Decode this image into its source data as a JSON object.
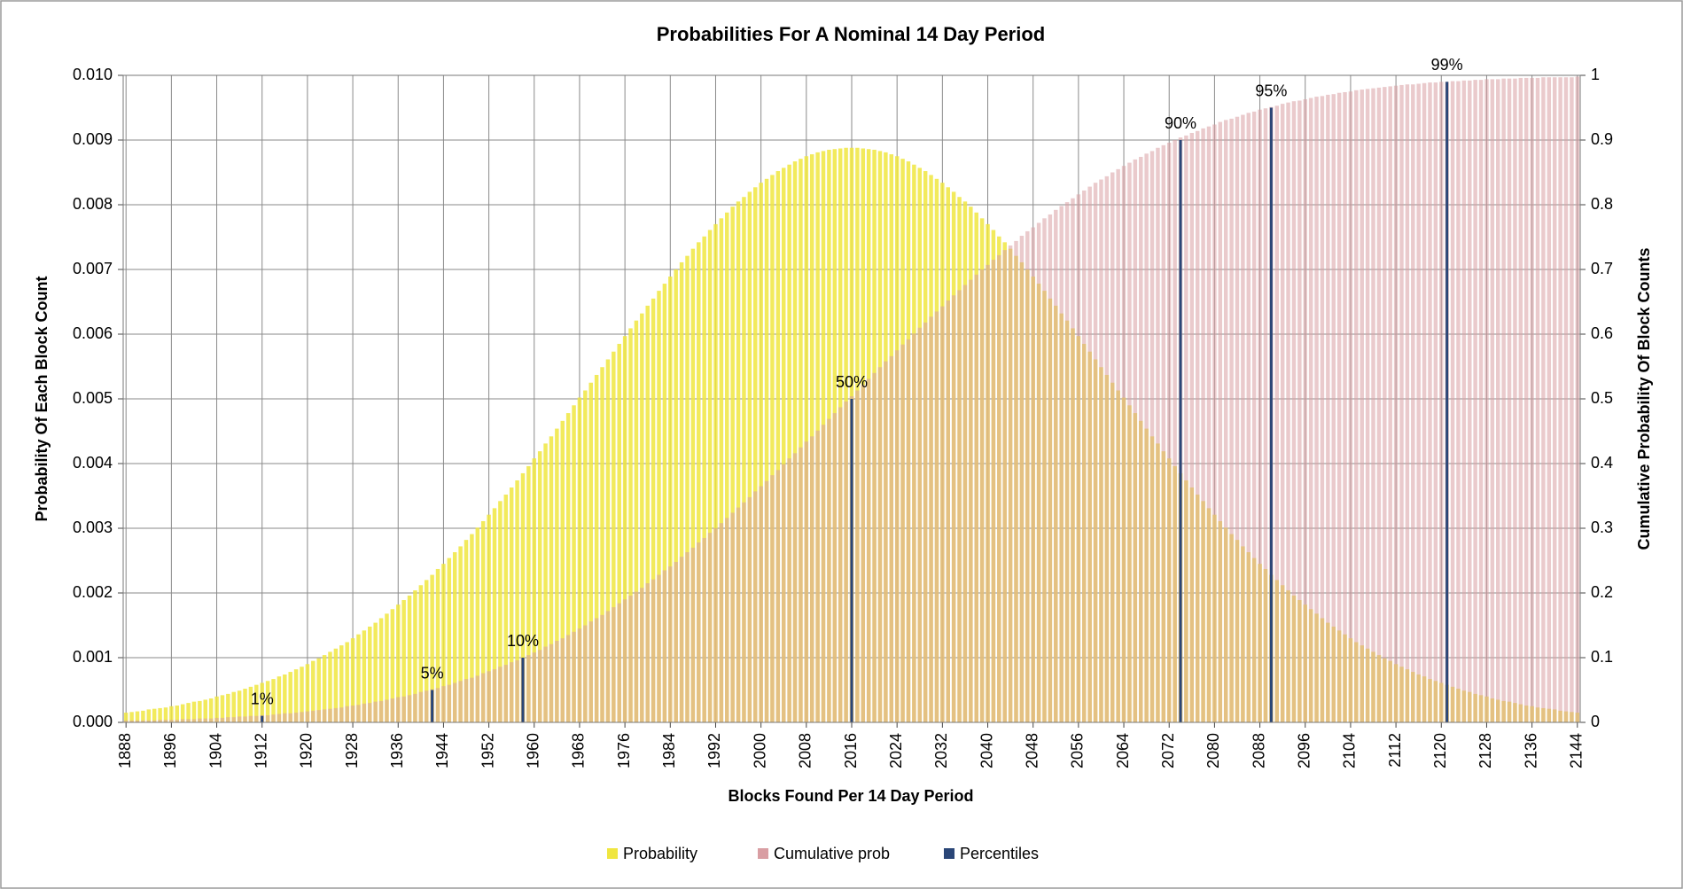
{
  "chart_data": {
    "type": "bar",
    "title": "Probabilities For A Nominal 14 Day Period",
    "x_label": "Blocks Found Per 14 Day Period",
    "y_label": "Probability Of Each Block Count",
    "y2_label": "Cumulative Probability Of Block Counts",
    "legend": "bottom",
    "grid": true,
    "xlim": [
      1887.5,
      2144.5
    ],
    "xticks": [
      1888,
      1896,
      1904,
      1912,
      1920,
      1928,
      1936,
      1944,
      1952,
      1960,
      1968,
      1976,
      1984,
      1992,
      2000,
      2008,
      2016,
      2024,
      2032,
      2040,
      2048,
      2056,
      2064,
      2072,
      2080,
      2088,
      2096,
      2104,
      2112,
      2120,
      2128,
      2136,
      2144
    ],
    "ylim": [
      0,
      0.01
    ],
    "yticks": [
      {
        "value": 0,
        "label": "0.000"
      },
      {
        "value": 0.001,
        "label": "0.001"
      },
      {
        "value": 0.002,
        "label": "0.002"
      },
      {
        "value": 0.003,
        "label": "0.003"
      },
      {
        "value": 0.004,
        "label": "0.004"
      },
      {
        "value": 0.005,
        "label": "0.005"
      },
      {
        "value": 0.006,
        "label": "0.006"
      },
      {
        "value": 0.007,
        "label": "0.007"
      },
      {
        "value": 0.008,
        "label": "0.008"
      },
      {
        "value": 0.009,
        "label": "0.009"
      },
      {
        "value": 0.01,
        "label": "0.010"
      }
    ],
    "y2lim": [
      0,
      1
    ],
    "y2ticks": [
      0,
      0.1,
      0.2,
      0.3,
      0.4,
      0.5,
      0.6,
      0.7,
      0.8,
      0.9,
      1
    ],
    "x": [
      1888,
      1889,
      1890,
      1891,
      1892,
      1893,
      1894,
      1895,
      1896,
      1897,
      1898,
      1899,
      1900,
      1901,
      1902,
      1903,
      1904,
      1905,
      1906,
      1907,
      1908,
      1909,
      1910,
      1911,
      1912,
      1913,
      1914,
      1915,
      1916,
      1917,
      1918,
      1919,
      1920,
      1921,
      1922,
      1923,
      1924,
      1925,
      1926,
      1927,
      1928,
      1929,
      1930,
      1931,
      1932,
      1933,
      1934,
      1935,
      1936,
      1937,
      1938,
      1939,
      1940,
      1941,
      1942,
      1943,
      1944,
      1945,
      1946,
      1947,
      1948,
      1949,
      1950,
      1951,
      1952,
      1953,
      1954,
      1955,
      1956,
      1957,
      1958,
      1959,
      1960,
      1961,
      1962,
      1963,
      1964,
      1965,
      1966,
      1967,
      1968,
      1969,
      1970,
      1971,
      1972,
      1973,
      1974,
      1975,
      1976,
      1977,
      1978,
      1979,
      1980,
      1981,
      1982,
      1983,
      1984,
      1985,
      1986,
      1987,
      1988,
      1989,
      1990,
      1991,
      1992,
      1993,
      1994,
      1995,
      1996,
      1997,
      1998,
      1999,
      2000,
      2001,
      2002,
      2003,
      2004,
      2005,
      2006,
      2007,
      2008,
      2009,
      2010,
      2011,
      2012,
      2013,
      2014,
      2015,
      2016,
      2017,
      2018,
      2019,
      2020,
      2021,
      2022,
      2023,
      2024,
      2025,
      2026,
      2027,
      2028,
      2029,
      2030,
      2031,
      2032,
      2033,
      2034,
      2035,
      2036,
      2037,
      2038,
      2039,
      2040,
      2041,
      2042,
      2043,
      2044,
      2045,
      2046,
      2047,
      2048,
      2049,
      2050,
      2051,
      2052,
      2053,
      2054,
      2055,
      2056,
      2057,
      2058,
      2059,
      2060,
      2061,
      2062,
      2063,
      2064,
      2065,
      2066,
      2067,
      2068,
      2069,
      2070,
      2071,
      2072,
      2073,
      2074,
      2075,
      2076,
      2077,
      2078,
      2079,
      2080,
      2081,
      2082,
      2083,
      2084,
      2085,
      2086,
      2087,
      2088,
      2089,
      2090,
      2091,
      2092,
      2093,
      2094,
      2095,
      2096,
      2097,
      2098,
      2099,
      2100,
      2101,
      2102,
      2103,
      2104,
      2105,
      2106,
      2107,
      2108,
      2109,
      2110,
      2111,
      2112,
      2113,
      2114,
      2115,
      2116,
      2117,
      2118,
      2119,
      2120,
      2121,
      2122,
      2123,
      2124,
      2125,
      2126,
      2127,
      2128,
      2129,
      2130,
      2131,
      2132,
      2133,
      2134,
      2135,
      2136,
      2137,
      2138,
      2139,
      2140,
      2141,
      2142,
      2143,
      2144
    ],
    "series": [
      {
        "name": "Probability",
        "color": "#f0e640",
        "values": [
          0.00015,
          0.00016,
          0.00017,
          0.00018,
          0.0002,
          0.00021,
          0.00022,
          0.00023,
          0.00025,
          0.00026,
          0.00028,
          0.0003,
          0.00032,
          0.00033,
          0.00035,
          0.00037,
          0.0004,
          0.00042,
          0.00044,
          0.00047,
          0.00049,
          0.00052,
          0.00055,
          0.00058,
          0.00061,
          0.00064,
          0.00067,
          0.00071,
          0.00074,
          0.00078,
          0.00082,
          0.00086,
          0.0009,
          0.00095,
          0.00099,
          0.00104,
          0.00109,
          0.00114,
          0.00119,
          0.00124,
          0.0013,
          0.00136,
          0.00142,
          0.00148,
          0.00154,
          0.00161,
          0.00168,
          0.00175,
          0.00182,
          0.00189,
          0.00196,
          0.00204,
          0.00212,
          0.0022,
          0.00228,
          0.00237,
          0.00245,
          0.00254,
          0.00263,
          0.00272,
          0.00282,
          0.00291,
          0.00301,
          0.00311,
          0.00321,
          0.00331,
          0.00342,
          0.00352,
          0.00363,
          0.00374,
          0.00385,
          0.00396,
          0.00408,
          0.00419,
          0.00431,
          0.00442,
          0.00454,
          0.00466,
          0.00478,
          0.0049,
          0.00502,
          0.00513,
          0.00525,
          0.00537,
          0.00549,
          0.00561,
          0.00573,
          0.00585,
          0.00597,
          0.00609,
          0.00621,
          0.00632,
          0.00644,
          0.00655,
          0.00667,
          0.00678,
          0.00689,
          0.007,
          0.00711,
          0.00721,
          0.00732,
          0.00742,
          0.00751,
          0.00761,
          0.0077,
          0.00779,
          0.00788,
          0.00797,
          0.00805,
          0.00812,
          0.0082,
          0.00827,
          0.00834,
          0.0084,
          0.00846,
          0.00852,
          0.00857,
          0.00862,
          0.00867,
          0.00871,
          0.00875,
          0.00878,
          0.00881,
          0.00883,
          0.00885,
          0.00886,
          0.00887,
          0.00888,
          0.00888,
          0.00888,
          0.00887,
          0.00886,
          0.00885,
          0.00883,
          0.00881,
          0.00878,
          0.00875,
          0.00871,
          0.00867,
          0.00862,
          0.00857,
          0.00852,
          0.00846,
          0.0084,
          0.00834,
          0.00827,
          0.0082,
          0.00812,
          0.00805,
          0.00797,
          0.00788,
          0.00779,
          0.0077,
          0.00761,
          0.00751,
          0.00742,
          0.00732,
          0.00721,
          0.00711,
          0.007,
          0.00689,
          0.00678,
          0.00667,
          0.00655,
          0.00644,
          0.00632,
          0.00621,
          0.00609,
          0.00597,
          0.00585,
          0.00573,
          0.00561,
          0.00549,
          0.00537,
          0.00525,
          0.00513,
          0.00502,
          0.0049,
          0.00478,
          0.00466,
          0.00454,
          0.00442,
          0.00431,
          0.00419,
          0.00408,
          0.00396,
          0.00385,
          0.00374,
          0.00363,
          0.00352,
          0.00342,
          0.00331,
          0.00321,
          0.00311,
          0.00301,
          0.00291,
          0.00282,
          0.00272,
          0.00263,
          0.00254,
          0.00245,
          0.00237,
          0.00228,
          0.0022,
          0.00212,
          0.00204,
          0.00196,
          0.00189,
          0.00182,
          0.00175,
          0.00168,
          0.00161,
          0.00154,
          0.00148,
          0.00142,
          0.00136,
          0.0013,
          0.00124,
          0.00119,
          0.00114,
          0.00109,
          0.00104,
          0.00099,
          0.00095,
          0.0009,
          0.00086,
          0.00082,
          0.00078,
          0.00074,
          0.00071,
          0.00067,
          0.00064,
          0.00061,
          0.00058,
          0.00055,
          0.00052,
          0.00049,
          0.00047,
          0.00044,
          0.00042,
          0.0004,
          0.00037,
          0.00035,
          0.00033,
          0.00032,
          0.0003,
          0.00028,
          0.00026,
          0.00025,
          0.00023,
          0.00022,
          0.00021,
          0.0002,
          0.00018,
          0.00017,
          0.00016,
          0.00015
        ]
      },
      {
        "name": "Cumulative prob",
        "color": "#d99ea3",
        "axis": "y2",
        "values": [
          0.003,
          0.003,
          0.003,
          0.003,
          0.003,
          0.003,
          0.004,
          0.004,
          0.004,
          0.004,
          0.005,
          0.005,
          0.005,
          0.006,
          0.006,
          0.006,
          0.007,
          0.007,
          0.008,
          0.008,
          0.009,
          0.009,
          0.01,
          0.01,
          0.011,
          0.011,
          0.012,
          0.013,
          0.014,
          0.014,
          0.015,
          0.016,
          0.017,
          0.018,
          0.019,
          0.02,
          0.021,
          0.022,
          0.023,
          0.025,
          0.026,
          0.027,
          0.029,
          0.03,
          0.032,
          0.033,
          0.035,
          0.037,
          0.039,
          0.04,
          0.042,
          0.044,
          0.047,
          0.049,
          0.051,
          0.053,
          0.056,
          0.058,
          0.061,
          0.064,
          0.067,
          0.069,
          0.072,
          0.076,
          0.079,
          0.082,
          0.086,
          0.089,
          0.093,
          0.096,
          0.1,
          0.104,
          0.108,
          0.112,
          0.117,
          0.121,
          0.126,
          0.13,
          0.135,
          0.14,
          0.145,
          0.15,
          0.156,
          0.161,
          0.166,
          0.172,
          0.178,
          0.184,
          0.19,
          0.196,
          0.202,
          0.208,
          0.215,
          0.221,
          0.228,
          0.235,
          0.241,
          0.248,
          0.256,
          0.263,
          0.27,
          0.278,
          0.285,
          0.293,
          0.3,
          0.308,
          0.316,
          0.324,
          0.332,
          0.34,
          0.348,
          0.357,
          0.365,
          0.373,
          0.382,
          0.39,
          0.399,
          0.408,
          0.416,
          0.425,
          0.434,
          0.442,
          0.451,
          0.46,
          0.469,
          0.478,
          0.487,
          0.496,
          0.504,
          0.513,
          0.522,
          0.531,
          0.54,
          0.549,
          0.558,
          0.566,
          0.575,
          0.584,
          0.592,
          0.601,
          0.61,
          0.618,
          0.627,
          0.635,
          0.643,
          0.652,
          0.66,
          0.668,
          0.676,
          0.684,
          0.692,
          0.7,
          0.707,
          0.715,
          0.722,
          0.73,
          0.737,
          0.744,
          0.752,
          0.759,
          0.765,
          0.772,
          0.779,
          0.785,
          0.792,
          0.798,
          0.804,
          0.81,
          0.816,
          0.822,
          0.828,
          0.834,
          0.839,
          0.844,
          0.85,
          0.855,
          0.86,
          0.865,
          0.87,
          0.874,
          0.879,
          0.883,
          0.888,
          0.892,
          0.896,
          0.9,
          0.904,
          0.907,
          0.911,
          0.914,
          0.918,
          0.921,
          0.924,
          0.928,
          0.931,
          0.933,
          0.936,
          0.939,
          0.942,
          0.944,
          0.947,
          0.949,
          0.951,
          0.953,
          0.956,
          0.958,
          0.96,
          0.961,
          0.963,
          0.965,
          0.967,
          0.968,
          0.97,
          0.971,
          0.973,
          0.974,
          0.975,
          0.977,
          0.978,
          0.979,
          0.98,
          0.981,
          0.982,
          0.983,
          0.984,
          0.985,
          0.986,
          0.986,
          0.987,
          0.988,
          0.989,
          0.989,
          0.99,
          0.99,
          0.991,
          0.991,
          0.992,
          0.992,
          0.993,
          0.993,
          0.994,
          0.994,
          0.994,
          0.995,
          0.995,
          0.995,
          0.996,
          0.996,
          0.996,
          0.996,
          0.997,
          0.997,
          0.997,
          0.997,
          0.997,
          0.997,
          0.998
        ]
      },
      {
        "name": "Percentiles",
        "color": "#2a4677",
        "axis": "y2",
        "x": [
          1912,
          1942,
          1958,
          2016,
          2074,
          2090,
          2121
        ],
        "values": [
          0.01,
          0.05,
          0.1,
          0.5,
          0.9,
          0.95,
          0.99
        ],
        "value_labels": [
          "1%",
          "5%",
          "10%",
          "50%",
          "90%",
          "95%",
          "99%"
        ]
      }
    ]
  }
}
